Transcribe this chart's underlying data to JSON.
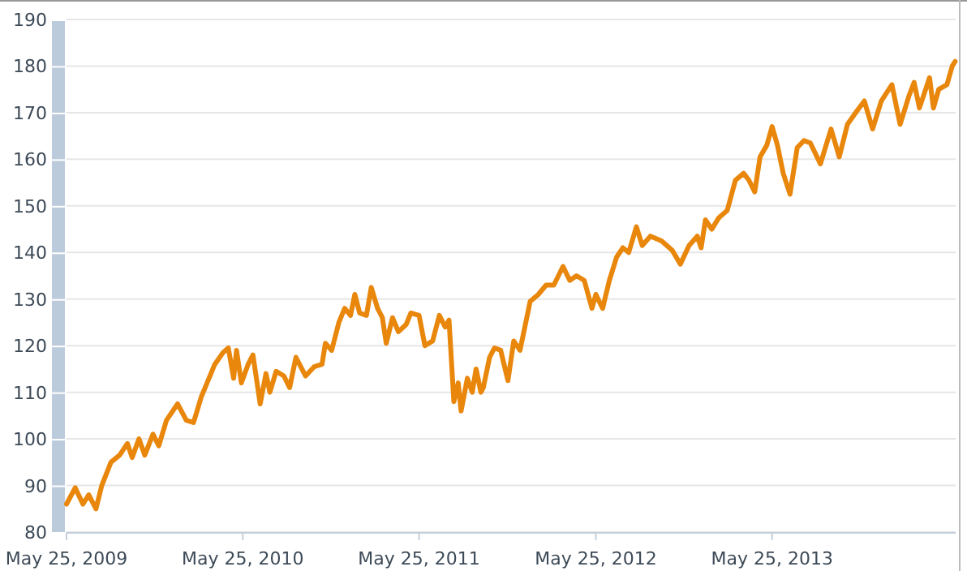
{
  "chart_data": {
    "type": "line",
    "x": [
      "2009-05-25",
      "2009-06-12",
      "2009-06-28",
      "2009-07-10",
      "2009-07-25",
      "2009-08-06",
      "2009-08-25",
      "2009-09-12",
      "2009-09-28",
      "2009-10-08",
      "2009-10-22",
      "2009-11-03",
      "2009-11-20",
      "2009-12-02",
      "2009-12-18",
      "2010-01-10",
      "2010-01-28",
      "2010-02-12",
      "2010-02-28",
      "2010-03-12",
      "2010-03-28",
      "2010-04-14",
      "2010-04-25",
      "2010-05-06",
      "2010-05-12",
      "2010-05-22",
      "2010-06-05",
      "2010-06-15",
      "2010-06-30",
      "2010-07-12",
      "2010-07-20",
      "2010-08-02",
      "2010-08-18",
      "2010-08-30",
      "2010-09-12",
      "2010-10-02",
      "2010-10-20",
      "2010-11-05",
      "2010-11-12",
      "2010-11-25",
      "2010-12-10",
      "2010-12-22",
      "2011-01-03",
      "2011-01-12",
      "2011-01-22",
      "2011-02-05",
      "2011-02-15",
      "2011-02-28",
      "2011-03-10",
      "2011-03-18",
      "2011-03-31",
      "2011-04-12",
      "2011-04-28",
      "2011-05-08",
      "2011-05-25",
      "2011-06-06",
      "2011-06-22",
      "2011-07-06",
      "2011-07-18",
      "2011-07-26",
      "2011-08-05",
      "2011-08-14",
      "2011-08-20",
      "2011-09-02",
      "2011-09-12",
      "2011-09-20",
      "2011-09-30",
      "2011-10-05",
      "2011-10-18",
      "2011-10-28",
      "2011-11-10",
      "2011-11-25",
      "2011-12-07",
      "2011-12-20",
      "2012-01-10",
      "2012-01-27",
      "2012-02-12",
      "2012-02-28",
      "2012-03-18",
      "2012-04-01",
      "2012-04-15",
      "2012-05-01",
      "2012-05-17",
      "2012-05-25",
      "2012-06-08",
      "2012-06-22",
      "2012-07-07",
      "2012-07-20",
      "2012-08-01",
      "2012-08-17",
      "2012-08-29",
      "2012-09-15",
      "2012-10-08",
      "2012-10-30",
      "2012-11-16",
      "2012-12-04",
      "2012-12-21",
      "2012-12-29",
      "2013-01-07",
      "2013-01-20",
      "2013-02-04",
      "2013-02-21",
      "2013-03-10",
      "2013-03-27",
      "2013-04-07",
      "2013-04-19",
      "2013-04-30",
      "2013-05-14",
      "2013-05-25",
      "2013-06-05",
      "2013-06-17",
      "2013-07-01",
      "2013-07-16",
      "2013-07-30",
      "2013-08-12",
      "2013-09-02",
      "2013-09-24",
      "2013-10-11",
      "2013-10-28",
      "2013-11-14",
      "2013-12-02",
      "2013-12-19",
      "2014-01-06",
      "2014-01-28",
      "2014-02-14",
      "2014-03-04",
      "2014-03-15",
      "2014-03-26",
      "2014-04-16",
      "2014-04-24",
      "2014-05-05",
      "2014-05-22",
      "2014-06-02",
      "2014-06-08"
    ],
    "series": [
      {
        "color": "#e8870c",
        "values": [
          86,
          89.5,
          86,
          88,
          85,
          90,
          95,
          96.5,
          99,
          96,
          100,
          96.5,
          101,
          98.5,
          104,
          107.5,
          104,
          103.5,
          109,
          112,
          116,
          118.5,
          119.5,
          113,
          119,
          112,
          116,
          118,
          107.5,
          114,
          110,
          114.5,
          113.5,
          111,
          117.5,
          113.5,
          115.5,
          116,
          120.5,
          119,
          125,
          128,
          126.5,
          131,
          127,
          126.5,
          132.5,
          128,
          126,
          120.5,
          126,
          123,
          124.5,
          127,
          126.5,
          120,
          121,
          126.5,
          124,
          125.5,
          108,
          112,
          106,
          113,
          110,
          115,
          110,
          111,
          117.5,
          119.5,
          119,
          112.5,
          121,
          119,
          129.5,
          131,
          133,
          133,
          137,
          134,
          135,
          134,
          128,
          131,
          128,
          134,
          139,
          141,
          140,
          145.5,
          141.5,
          143.5,
          142.5,
          140.5,
          137.5,
          141.5,
          143.5,
          141,
          147,
          145,
          147.5,
          149,
          155.5,
          157,
          155.5,
          153,
          160.5,
          163,
          167,
          163,
          157,
          152.5,
          162.5,
          164,
          163.5,
          159,
          166.5,
          160.5,
          167.5,
          170,
          172.5,
          166.5,
          172.5,
          176,
          167.5,
          173.5,
          176.5,
          171,
          177.5,
          171,
          175,
          176,
          180,
          181
        ]
      }
    ],
    "xlim": [
      "2009-05-25",
      "2014-06-09"
    ],
    "xticks": [
      {
        "value": "2009-05-25",
        "label": "May 25, 2009"
      },
      {
        "value": "2010-05-25",
        "label": "May 25, 2010"
      },
      {
        "value": "2011-05-25",
        "label": "May 25, 2011"
      },
      {
        "value": "2012-05-25",
        "label": "May 25, 2012"
      },
      {
        "value": "2013-05-25",
        "label": "May 25, 2013"
      }
    ],
    "ylim": [
      80,
      190
    ],
    "yticks": [
      80,
      90,
      100,
      110,
      120,
      130,
      140,
      150,
      160,
      170,
      180,
      190
    ],
    "grid": "y",
    "marker": "none",
    "line_style": "solid"
  }
}
